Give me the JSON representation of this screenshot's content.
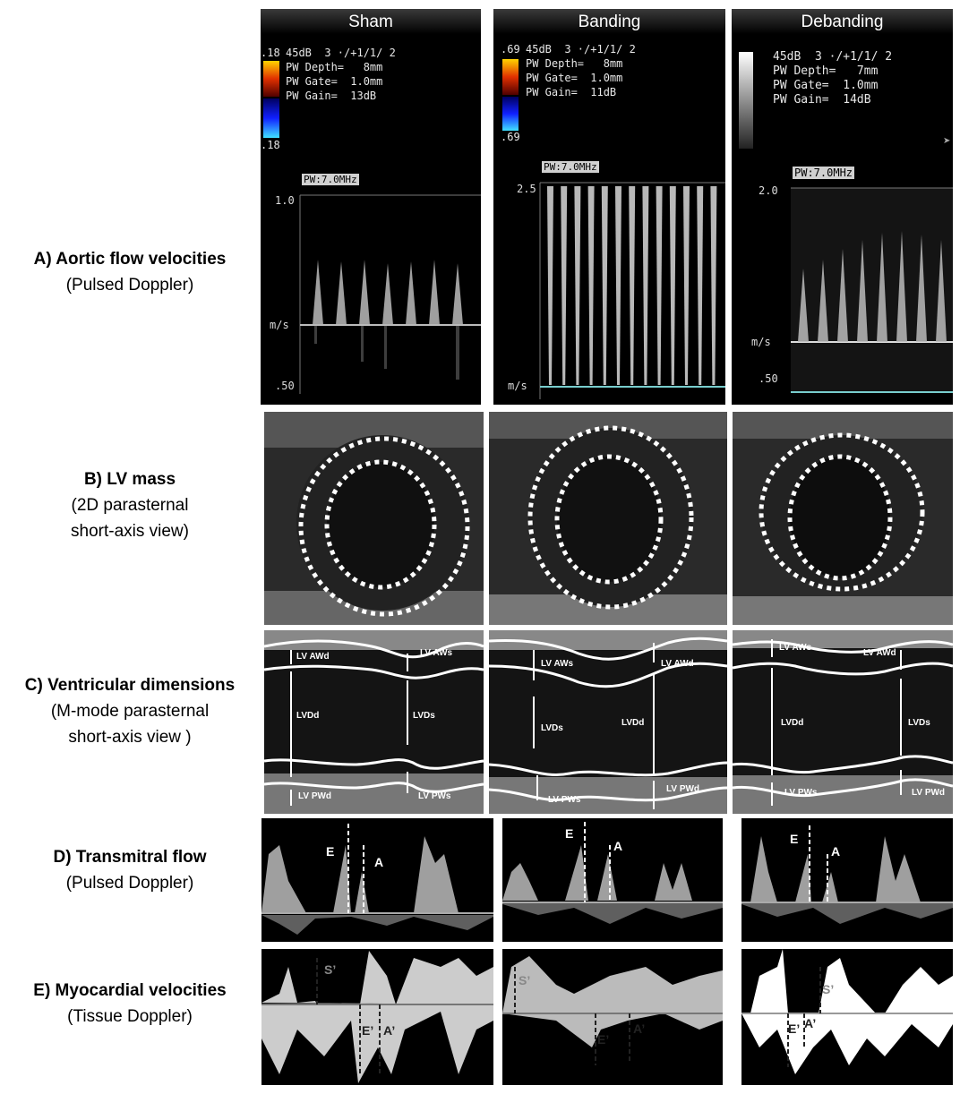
{
  "rows": [
    {
      "title": "A) Aortic flow velocities",
      "sub": [
        "(Pulsed Doppler)"
      ]
    },
    {
      "title": "B) LV mass",
      "sub": [
        "(2D parasternal",
        "short-axis view)"
      ]
    },
    {
      "title": "C) Ventricular dimensions",
      "sub": [
        "(M-mode parasternal",
        "short-axis view )"
      ]
    },
    {
      "title": "D) Transmitral flow",
      "sub": [
        "(Pulsed Doppler)"
      ]
    },
    {
      "title": "E) Myocardial velocities",
      "sub": [
        "(Tissue Doppler)"
      ]
    }
  ],
  "columns": [
    {
      "name": "Sham",
      "scale_top": ".18",
      "scale_bottom": ".18",
      "settings": [
        "45dB  3 ·/+1/1/ 2",
        "PW Depth=   8mm",
        "PW Gate=  1.0mm",
        "PW Gain=  13dB"
      ],
      "probe": "PW:7.0MHz",
      "axis_top": "1.0",
      "axis_mid": "m/s",
      "axis_bottom": ".50"
    },
    {
      "name": "Banding",
      "scale_top": ".69",
      "scale_bottom": ".69",
      "settings": [
        "45dB  3 ·/+1/1/ 2",
        "PW Depth=   8mm",
        "PW Gate=  1.0mm",
        "PW Gain=  11dB"
      ],
      "probe": "PW:7.0MHz",
      "axis_top": "2.5",
      "axis_bottom": "m/s"
    },
    {
      "name": "Debanding",
      "settings": [
        "45dB  3 ·/+1/1/ 2",
        "PW Depth=   7mm",
        "PW Gate=  1.0mm",
        "PW Gain=  14dB"
      ],
      "probe": "PW:7.0MHz",
      "axis_top": "2.0",
      "axis_mid": "m/s",
      "axis_bottom": ".50"
    }
  ],
  "mmode": {
    "sham": {
      "aw_d": "LV AWd",
      "aw_s": "LV AWs",
      "vd_d": "LVDd",
      "vd_s": "LVDs",
      "pw_d": "LV PWd",
      "pw_s": "LV PWs"
    },
    "banding": {
      "aw_s": "LV AWs",
      "aw_d": "LV AWd",
      "vd_s": "LVDs",
      "vd_d": "LVDd",
      "pw_s": "LV PWs",
      "pw_d": "LV PWd"
    },
    "debanding": {
      "aw_s": "LV AWs",
      "aw_d": "LV AWd",
      "vd_d": "LVDd",
      "vd_s": "LVDs",
      "pw_s": "LV PWs",
      "pw_d": "LV PWd"
    }
  },
  "transmitral": {
    "e": "E",
    "a": "A"
  },
  "tissue": {
    "s": "S’",
    "e": "E’",
    "a": "A’"
  }
}
